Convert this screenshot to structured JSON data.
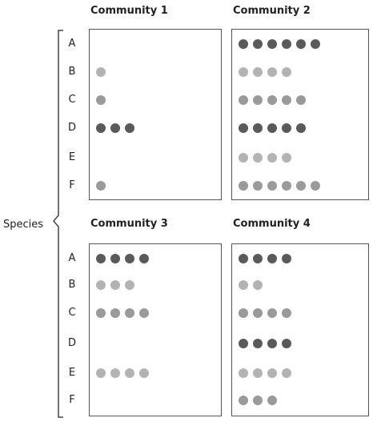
{
  "axis_label": "Species",
  "species": [
    "A",
    "B",
    "C",
    "D",
    "E",
    "F"
  ],
  "shade_colors": {
    "dark": "#5a5a5a",
    "mid": "#9a9a9a",
    "light": "#b3b3b3"
  },
  "communities": [
    {
      "title": "Community 1",
      "counts": {
        "A": 0,
        "B": 1,
        "C": 1,
        "D": 3,
        "E": 0,
        "F": 1
      },
      "shades": {
        "A": "light",
        "B": "light",
        "C": "mid",
        "D": "dark",
        "E": "light",
        "F": "mid"
      }
    },
    {
      "title": "Community 2",
      "counts": {
        "A": 6,
        "B": 4,
        "C": 5,
        "D": 5,
        "E": 4,
        "F": 6
      },
      "shades": {
        "A": "dark",
        "B": "light",
        "C": "mid",
        "D": "dark",
        "E": "light",
        "F": "mid"
      }
    },
    {
      "title": "Community 3",
      "counts": {
        "A": 4,
        "B": 3,
        "C": 4,
        "D": 0,
        "E": 4,
        "F": 0
      },
      "shades": {
        "A": "dark",
        "B": "light",
        "C": "mid",
        "D": "dark",
        "E": "light",
        "F": "mid"
      }
    },
    {
      "title": "Community 4",
      "counts": {
        "A": 4,
        "B": 2,
        "C": 4,
        "D": 4,
        "E": 4,
        "F": 3
      },
      "shades": {
        "A": "dark",
        "B": "light",
        "C": "mid",
        "D": "dark",
        "E": "light",
        "F": "mid"
      }
    }
  ]
}
